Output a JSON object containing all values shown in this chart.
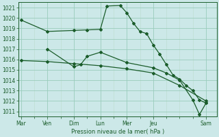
{
  "bg_color": "#cce8e8",
  "grid_color_major": "#99ccbb",
  "grid_color_minor": "#bbddcc",
  "line_color": "#1a5c2a",
  "xlabel": "Pression niveau de la mer( hPa )",
  "ylim": [
    1010.5,
    1021.5
  ],
  "yticks": [
    1011,
    1012,
    1013,
    1014,
    1015,
    1016,
    1017,
    1018,
    1019,
    1020,
    1021
  ],
  "x_labels": [
    "Mar",
    "Ven",
    "Dim",
    "Lun",
    "Mer",
    "Jeu",
    "Sam"
  ],
  "x_tick_pos": [
    0,
    2,
    4,
    6,
    8,
    10,
    14
  ],
  "xlim": [
    -0.2,
    14.8
  ],
  "series1_x": [
    0,
    2,
    4,
    5,
    6,
    6.5,
    7.5,
    8.0,
    8.5,
    9.0,
    9.5,
    10.0,
    10.5,
    11.0,
    11.5,
    12.0,
    12.5,
    13.0,
    13.5,
    14.0
  ],
  "series1_y": [
    1019.8,
    1018.7,
    1018.8,
    1018.85,
    1018.9,
    1021.15,
    1021.2,
    1020.5,
    1019.5,
    1018.7,
    1018.5,
    1017.4,
    1016.5,
    1015.5,
    1014.5,
    1014.1,
    1013.5,
    1013.0,
    1012.1,
    1011.8
  ],
  "series2_x": [
    2,
    4,
    4.5,
    5,
    6,
    8,
    10,
    11,
    12,
    13,
    13.5,
    14.0
  ],
  "series2_y": [
    1017.0,
    1015.3,
    1015.5,
    1016.3,
    1016.7,
    1015.7,
    1015.2,
    1014.7,
    1014.0,
    1012.1,
    1010.7,
    1011.8
  ],
  "series3_x": [
    0,
    2,
    4,
    6,
    8,
    10,
    12,
    14
  ],
  "series3_y": [
    1015.9,
    1015.8,
    1015.6,
    1015.4,
    1015.1,
    1014.7,
    1013.5,
    1012.0
  ],
  "figsize": [
    3.2,
    2.0
  ],
  "dpi": 100
}
